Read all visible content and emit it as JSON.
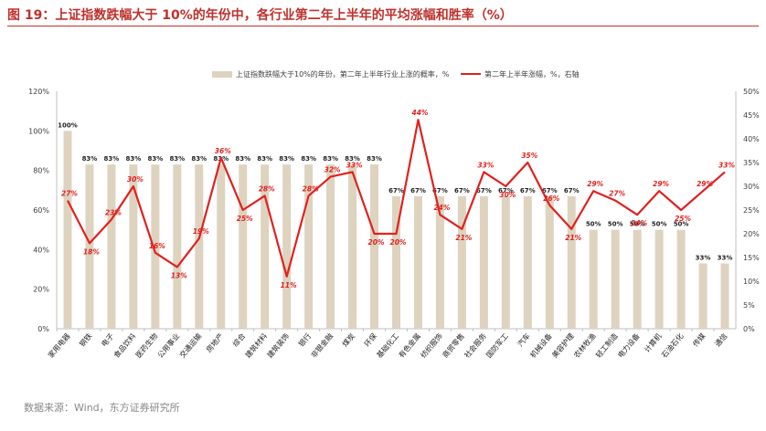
{
  "title": "图 19：上证指数跌幅大于 10%的年份中，各行业第二年上半年的平均涨幅和胜率（%）",
  "source": "数据来源：Wind，东方证券研究所",
  "colors": {
    "title": "#c0302b",
    "bar": "#ddd3bf",
    "line": "#e0211f",
    "axis": "#bfbfbf",
    "text": "#404040"
  },
  "chart_data": {
    "type": "bar+line",
    "categories": [
      "家用电器",
      "钢铁",
      "电子",
      "食品饮料",
      "医药生物",
      "公用事业",
      "交通运输",
      "房地产",
      "综合",
      "建筑材料",
      "建筑装饰",
      "银行",
      "非银金融",
      "煤炭",
      "环保",
      "基础化工",
      "有色金属",
      "纺织服饰",
      "商贸零售",
      "社会服务",
      "国防军工",
      "汽车",
      "机械设备",
      "美容护理",
      "农林牧渔",
      "轻工制造",
      "电力设备",
      "计算机",
      "石油石化",
      "传媒",
      "通信"
    ],
    "series": [
      {
        "name": "上证指数跌幅大于10%的年份，第二年上半年行业上涨的概率，%",
        "type": "bar",
        "axis": "left",
        "values": [
          100,
          83,
          83,
          83,
          83,
          83,
          83,
          83,
          83,
          83,
          83,
          83,
          83,
          83,
          83,
          67,
          67,
          67,
          67,
          67,
          67,
          67,
          67,
          67,
          50,
          50,
          50,
          50,
          50,
          33,
          33
        ],
        "labels": [
          "100%",
          "83%",
          "83%",
          "83%",
          "83%",
          "83%",
          "83%",
          "83%",
          "83%",
          "83%",
          "83%",
          "83%",
          "83%",
          "83%",
          "83%",
          "67%",
          "67%",
          "67%",
          "67%",
          "67%",
          "67%",
          "67%",
          "67%",
          "67%",
          "50%",
          "50%",
          "50%",
          "50%",
          "50%",
          "33%",
          "33%"
        ]
      },
      {
        "name": "第二年上半年涨幅，%，右轴",
        "type": "line",
        "axis": "right",
        "values": [
          27,
          18,
          23,
          30,
          16,
          13,
          19,
          36,
          25,
          28,
          11,
          28,
          32,
          33,
          20,
          20,
          44,
          24,
          21,
          33,
          30,
          35,
          26,
          21,
          29,
          27,
          24,
          29,
          25,
          29,
          33
        ],
        "labels": [
          "27%",
          "18%",
          "23%",
          "30%",
          "16%",
          "13%",
          "19%",
          "36%",
          "25%",
          "28%",
          "11%",
          "28%",
          "32%",
          "33%",
          "20%",
          "20%",
          "44%",
          "24%",
          "21%",
          "33%",
          "30%",
          "35%",
          "26%",
          "21%",
          "29%",
          "27%",
          "24%",
          "29%",
          "25%",
          "29%",
          "33%"
        ]
      }
    ],
    "left_axis": {
      "min": 0,
      "max": 120,
      "step": 20,
      "ticks": [
        "0%",
        "20%",
        "40%",
        "60%",
        "80%",
        "100%",
        "120%"
      ]
    },
    "right_axis": {
      "min": 0,
      "max": 50,
      "step": 5,
      "ticks": [
        "0%",
        "5%",
        "10%",
        "15%",
        "20%",
        "25%",
        "30%",
        "35%",
        "40%",
        "45%",
        "50%"
      ]
    },
    "legend_position": "top-right",
    "grid": false
  }
}
